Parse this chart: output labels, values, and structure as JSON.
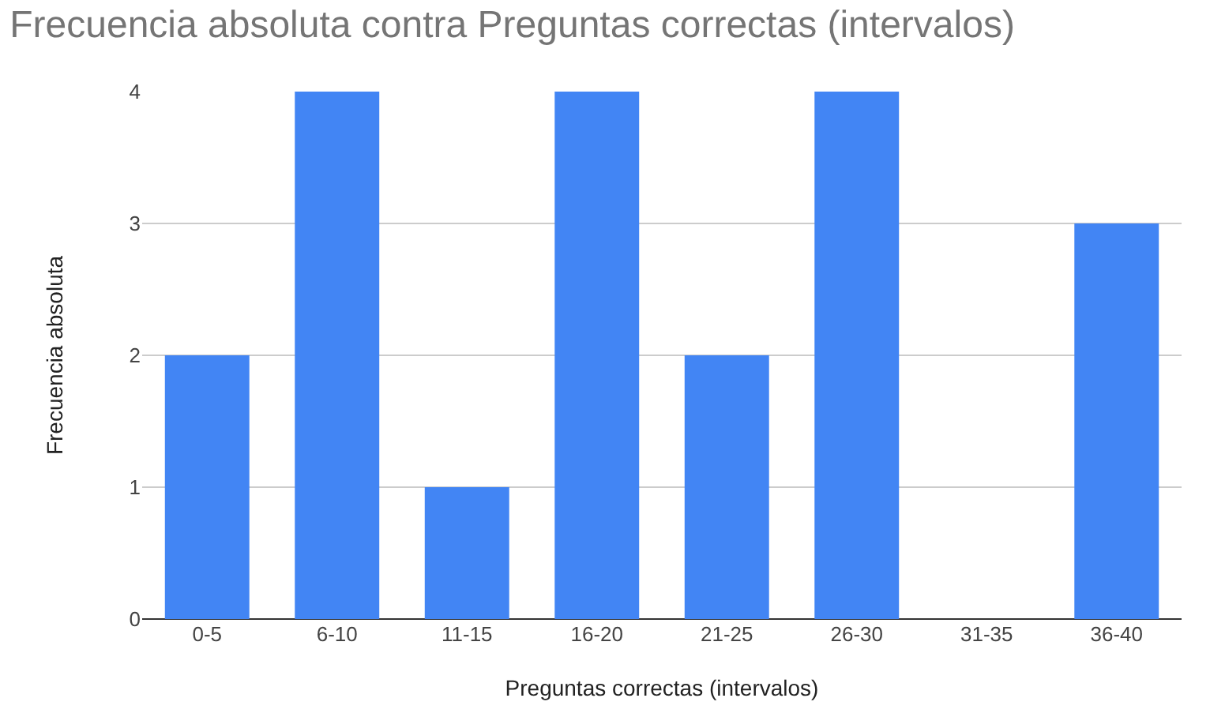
{
  "chart_data": {
    "type": "bar",
    "title": "Frecuencia absoluta contra Preguntas correctas (intervalos)",
    "xlabel": "Preguntas correctas (intervalos)",
    "ylabel": "Frecuencia absoluta",
    "categories": [
      "0-5",
      "6-10",
      "11-15",
      "16-20",
      "21-25",
      "26-30",
      "31-35",
      "36-40"
    ],
    "values": [
      2,
      4,
      1,
      4,
      2,
      4,
      0,
      3
    ],
    "color": "#4285f4",
    "ylim": [
      0,
      4
    ],
    "yticks": [
      0,
      1,
      2,
      3,
      4
    ],
    "grid": "y"
  }
}
